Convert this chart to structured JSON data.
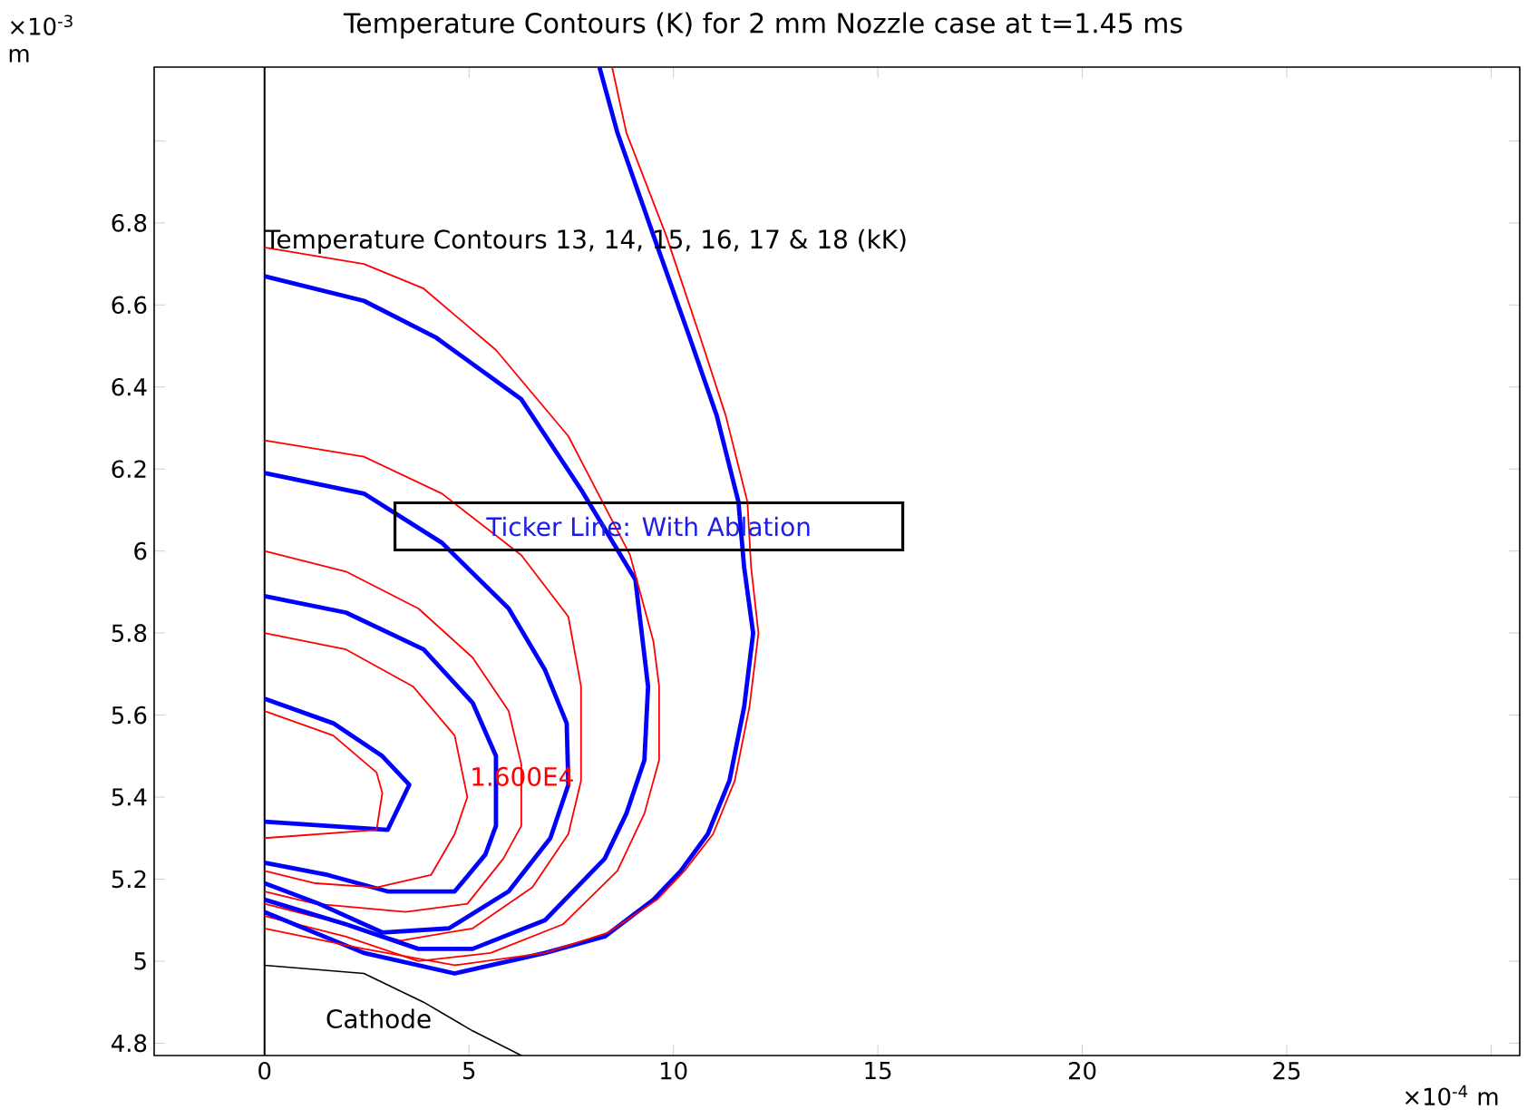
{
  "chart_data": {
    "type": "line",
    "title": "Temperature Contours (K) for 2 mm Nozzle case at t=1.45 ms",
    "xlabel": "×10$^{-4}$ m",
    "ylabel": "×10$^{-3}$ m",
    "xlim": [
      -2.7,
      30.7
    ],
    "ylim": [
      4.77,
      7.18
    ],
    "xticks": [
      0,
      5,
      10,
      15,
      20,
      25,
      {
        "value": 30,
        "label": null
      }
    ],
    "yticks": [
      4.8,
      5,
      5.2,
      5.4,
      5.6,
      5.8,
      6,
      6.2,
      6.4,
      6.6,
      6.8,
      {
        "value": 7,
        "label": null
      }
    ],
    "ref_lines": [
      {
        "axis": "x",
        "value": 0,
        "color": "#000000"
      }
    ],
    "annotations": [
      "Temperature Contours 13, 14, 15, 16, 17 & 18 (kK)",
      "Ticker Line: With Ablation",
      {
        "text": "1.600E4",
        "x": 6.3,
        "y": 5.45
      },
      "Cathode"
    ],
    "series": [
      {
        "color": "#0000ff",
        "x": [
          0,
          1.68,
          2.88,
          3.54,
          3.01,
          0
        ],
        "values": [
          5.64,
          5.58,
          5.5,
          5.43,
          5.32,
          5.34
        ]
      },
      {
        "color": "#ff0000",
        "x": [
          0,
          1.68,
          2.74,
          2.88,
          2.74,
          0
        ],
        "values": [
          5.61,
          5.55,
          5.46,
          5.41,
          5.32,
          5.3
        ]
      },
      {
        "color": "#0000ff",
        "x": [
          0,
          1.99,
          3.89,
          5.09,
          5.66,
          5.66,
          5.4,
          4.65,
          3.01,
          1.55,
          0
        ],
        "values": [
          5.89,
          5.85,
          5.76,
          5.63,
          5.5,
          5.33,
          5.26,
          5.17,
          5.17,
          5.21,
          5.24
        ]
      },
      {
        "color": "#ff0000",
        "x": [
          0,
          1.99,
          3.63,
          4.65,
          4.96,
          4.65,
          4.07,
          2.74,
          1.24,
          0
        ],
        "values": [
          5.8,
          5.76,
          5.67,
          5.55,
          5.4,
          5.31,
          5.21,
          5.18,
          5.19,
          5.22
        ]
      },
      {
        "color": "#ff0000",
        "x": [
          0,
          1.99,
          3.76,
          5.09,
          5.97,
          6.28,
          6.28,
          5.84,
          4.96,
          3.45,
          1.24,
          0
        ],
        "values": [
          6.0,
          5.95,
          5.86,
          5.74,
          5.61,
          5.48,
          5.33,
          5.25,
          5.14,
          5.12,
          5.14,
          5.17
        ]
      },
      {
        "color": "#0000ff",
        "x": [
          0,
          2.43,
          4.34,
          5.97,
          6.86,
          7.39,
          7.43,
          6.99,
          5.97,
          4.51,
          2.88,
          1.33,
          0
        ],
        "values": [
          6.19,
          6.14,
          6.02,
          5.86,
          5.71,
          5.58,
          5.43,
          5.3,
          5.17,
          5.08,
          5.07,
          5.14,
          5.19
        ]
      },
      {
        "color": "#ff0000",
        "x": [
          0,
          2.43,
          4.34,
          6.28,
          7.43,
          7.74,
          7.74,
          7.43,
          6.55,
          5.09,
          3.32,
          1.55,
          0
        ],
        "values": [
          6.27,
          6.23,
          6.14,
          5.99,
          5.84,
          5.67,
          5.44,
          5.31,
          5.18,
          5.08,
          5.05,
          5.1,
          5.14
        ]
      },
      {
        "color": "#0000ff",
        "x": [
          0,
          2.43,
          4.2,
          6.28,
          7.74,
          9.07,
          9.38,
          9.29,
          8.85,
          8.32,
          6.86,
          5.09,
          3.76,
          1.99,
          0
        ],
        "values": [
          6.67,
          6.61,
          6.52,
          6.37,
          6.15,
          5.93,
          5.67,
          5.49,
          5.36,
          5.25,
          5.1,
          5.03,
          5.03,
          5.09,
          5.15
        ]
      },
      {
        "color": "#ff0000",
        "x": [
          0,
          2.43,
          3.89,
          5.66,
          7.43,
          8.94,
          9.51,
          9.65,
          9.65,
          9.29,
          8.63,
          7.3,
          5.53,
          3.76,
          1.99,
          0
        ],
        "values": [
          6.74,
          6.7,
          6.64,
          6.49,
          6.28,
          5.99,
          5.78,
          5.67,
          5.49,
          5.36,
          5.22,
          5.09,
          5.02,
          5.0,
          5.06,
          5.11
        ]
      },
      {
        "color": "#0000ff",
        "x": [
          8.19,
          8.63,
          9.51,
          10.4,
          11.06,
          11.59,
          11.73,
          11.95,
          11.73,
          11.37,
          10.84,
          10.18,
          9.51,
          8.32,
          6.86,
          4.65,
          2.43,
          0
        ],
        "values": [
          7.18,
          7.02,
          6.77,
          6.52,
          6.33,
          6.12,
          5.96,
          5.8,
          5.62,
          5.44,
          5.31,
          5.22,
          5.15,
          5.06,
          5.02,
          4.97,
          5.02,
          5.12
        ]
      },
      {
        "color": "#ff0000",
        "x": [
          8.5,
          8.85,
          9.82,
          10.66,
          11.28,
          11.81,
          11.9,
          12.08,
          11.86,
          11.5,
          10.97,
          10.27,
          9.6,
          8.41,
          6.86,
          4.65,
          2.43,
          0
        ],
        "values": [
          7.18,
          7.02,
          6.77,
          6.52,
          6.33,
          6.12,
          5.96,
          5.8,
          5.62,
          5.44,
          5.31,
          5.22,
          5.15,
          5.07,
          5.02,
          4.99,
          5.03,
          5.08
        ]
      },
      {
        "color": "#000000",
        "x": [
          0,
          2.43,
          3.89,
          5.09,
          6.28
        ],
        "values": [
          4.99,
          4.97,
          4.9,
          4.83,
          4.77
        ]
      }
    ]
  }
}
